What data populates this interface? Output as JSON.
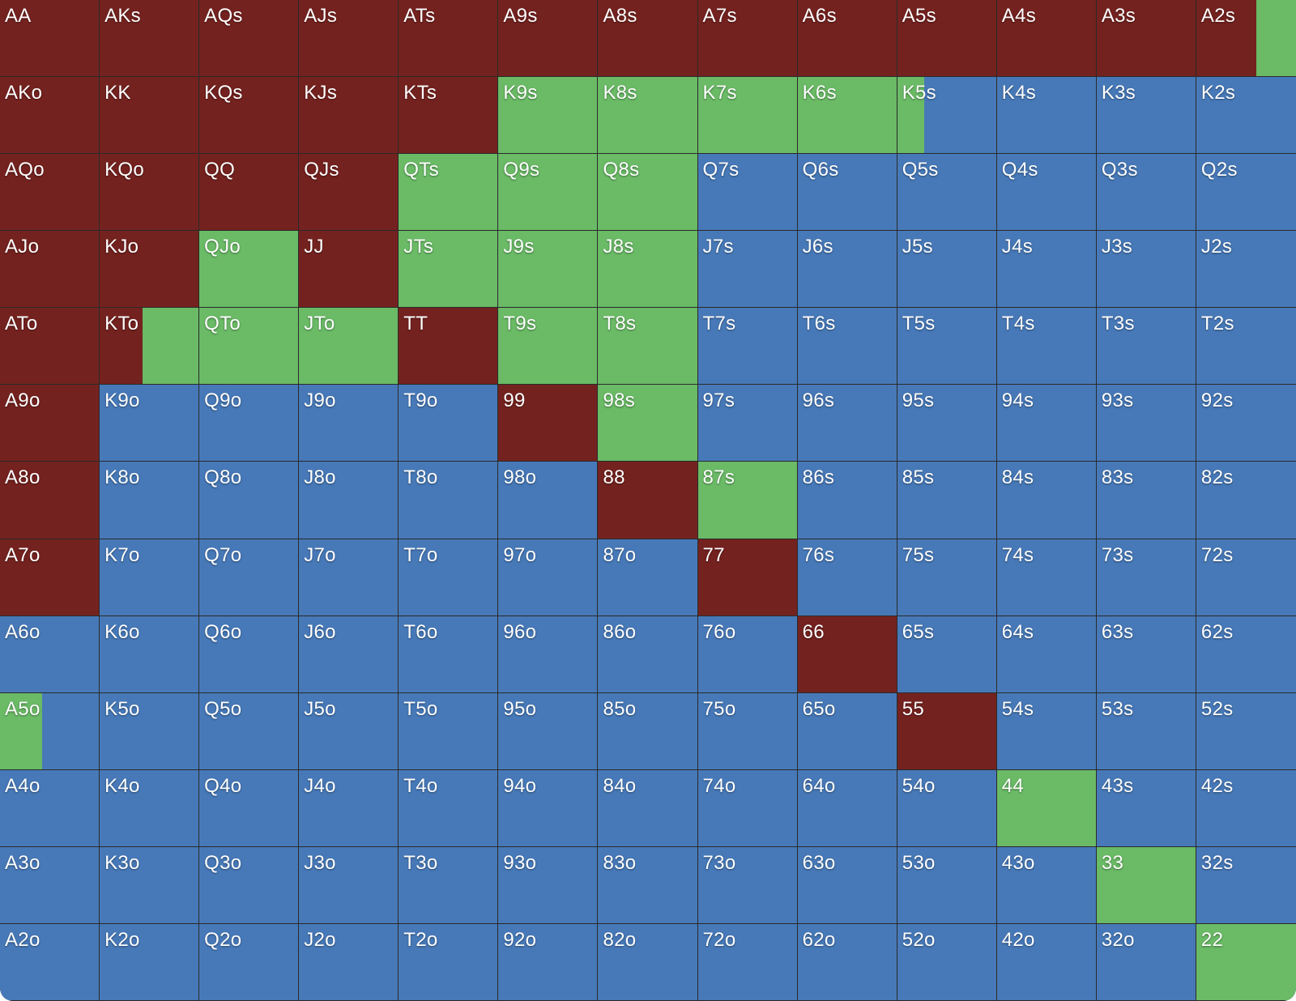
{
  "colors": {
    "raise": "#74221f",
    "call": "#6aba66",
    "fold": "#4779b8"
  },
  "ranks": [
    "A",
    "K",
    "Q",
    "J",
    "T",
    "9",
    "8",
    "7",
    "6",
    "5",
    "4",
    "3",
    "2"
  ],
  "hands": [
    [
      "AA",
      "AKs",
      "AQs",
      "AJs",
      "ATs",
      "A9s",
      "A8s",
      "A7s",
      "A6s",
      "A5s",
      "A4s",
      "A3s",
      "A2s"
    ],
    [
      "AKo",
      "KK",
      "KQs",
      "KJs",
      "KTs",
      "K9s",
      "K8s",
      "K7s",
      "K6s",
      "K5s",
      "K4s",
      "K3s",
      "K2s"
    ],
    [
      "AQo",
      "KQo",
      "QQ",
      "QJs",
      "QTs",
      "Q9s",
      "Q8s",
      "Q7s",
      "Q6s",
      "Q5s",
      "Q4s",
      "Q3s",
      "Q2s"
    ],
    [
      "AJo",
      "KJo",
      "QJo",
      "JJ",
      "JTs",
      "J9s",
      "J8s",
      "J7s",
      "J6s",
      "J5s",
      "J4s",
      "J3s",
      "J2s"
    ],
    [
      "ATo",
      "KTo",
      "QTo",
      "JTo",
      "TT",
      "T9s",
      "T8s",
      "T7s",
      "T6s",
      "T5s",
      "T4s",
      "T3s",
      "T2s"
    ],
    [
      "A9o",
      "K9o",
      "Q9o",
      "J9o",
      "T9o",
      "99",
      "98s",
      "97s",
      "96s",
      "95s",
      "94s",
      "93s",
      "92s"
    ],
    [
      "A8o",
      "K8o",
      "Q8o",
      "J8o",
      "T8o",
      "98o",
      "88",
      "87s",
      "86s",
      "85s",
      "84s",
      "83s",
      "82s"
    ],
    [
      "A7o",
      "K7o",
      "Q7o",
      "J7o",
      "T7o",
      "97o",
      "87o",
      "77",
      "76s",
      "75s",
      "74s",
      "73s",
      "72s"
    ],
    [
      "A6o",
      "K6o",
      "Q6o",
      "J6o",
      "T6o",
      "96o",
      "86o",
      "76o",
      "66",
      "65s",
      "64s",
      "63s",
      "62s"
    ],
    [
      "A5o",
      "K5o",
      "Q5o",
      "J5o",
      "T5o",
      "95o",
      "85o",
      "75o",
      "65o",
      "55",
      "54s",
      "53s",
      "52s"
    ],
    [
      "A4o",
      "K4o",
      "Q4o",
      "J4o",
      "T4o",
      "94o",
      "84o",
      "74o",
      "64o",
      "54o",
      "44",
      "43s",
      "42s"
    ],
    [
      "A3o",
      "K3o",
      "Q3o",
      "J3o",
      "T3o",
      "93o",
      "83o",
      "73o",
      "63o",
      "53o",
      "43o",
      "33",
      "32s"
    ],
    [
      "A2o",
      "K2o",
      "Q2o",
      "J2o",
      "T2o",
      "92o",
      "82o",
      "72o",
      "62o",
      "52o",
      "42o",
      "32o",
      "22"
    ]
  ],
  "frequencies": [
    [
      [
        1,
        0
      ],
      [
        1,
        0
      ],
      [
        1,
        0
      ],
      [
        1,
        0
      ],
      [
        1,
        0
      ],
      [
        1,
        0
      ],
      [
        1,
        0
      ],
      [
        1,
        0
      ],
      [
        1,
        0
      ],
      [
        1,
        0
      ],
      [
        1,
        0
      ],
      [
        1,
        0
      ],
      [
        0.6,
        0.4
      ]
    ],
    [
      [
        1,
        0
      ],
      [
        1,
        0
      ],
      [
        1,
        0
      ],
      [
        1,
        0
      ],
      [
        1,
        0
      ],
      [
        0,
        1
      ],
      [
        0,
        1
      ],
      [
        0,
        1
      ],
      [
        0,
        1
      ],
      [
        0,
        0.27
      ],
      [
        0,
        0
      ],
      [
        0,
        0
      ],
      [
        0,
        0
      ]
    ],
    [
      [
        1,
        0
      ],
      [
        1,
        0
      ],
      [
        1,
        0
      ],
      [
        1,
        0
      ],
      [
        0,
        1
      ],
      [
        0,
        1
      ],
      [
        0,
        1
      ],
      [
        0,
        0
      ],
      [
        0,
        0
      ],
      [
        0,
        0
      ],
      [
        0,
        0
      ],
      [
        0,
        0
      ],
      [
        0,
        0
      ]
    ],
    [
      [
        1,
        0
      ],
      [
        1,
        0
      ],
      [
        0,
        1
      ],
      [
        1,
        0
      ],
      [
        0,
        1
      ],
      [
        0,
        1
      ],
      [
        0,
        1
      ],
      [
        0,
        0
      ],
      [
        0,
        0
      ],
      [
        0,
        0
      ],
      [
        0,
        0
      ],
      [
        0,
        0
      ],
      [
        0,
        0
      ]
    ],
    [
      [
        1,
        0
      ],
      [
        0.43,
        0.57
      ],
      [
        0,
        1
      ],
      [
        0,
        1
      ],
      [
        1,
        0
      ],
      [
        0,
        1
      ],
      [
        0,
        1
      ],
      [
        0,
        0
      ],
      [
        0,
        0
      ],
      [
        0,
        0
      ],
      [
        0,
        0
      ],
      [
        0,
        0
      ],
      [
        0,
        0
      ]
    ],
    [
      [
        1,
        0
      ],
      [
        0,
        0
      ],
      [
        0,
        0
      ],
      [
        0,
        0
      ],
      [
        0,
        0
      ],
      [
        1,
        0
      ],
      [
        0,
        1
      ],
      [
        0,
        0
      ],
      [
        0,
        0
      ],
      [
        0,
        0
      ],
      [
        0,
        0
      ],
      [
        0,
        0
      ],
      [
        0,
        0
      ]
    ],
    [
      [
        1,
        0
      ],
      [
        0,
        0
      ],
      [
        0,
        0
      ],
      [
        0,
        0
      ],
      [
        0,
        0
      ],
      [
        0,
        0
      ],
      [
        1,
        0
      ],
      [
        0,
        1
      ],
      [
        0,
        0
      ],
      [
        0,
        0
      ],
      [
        0,
        0
      ],
      [
        0,
        0
      ],
      [
        0,
        0
      ]
    ],
    [
      [
        1,
        0
      ],
      [
        0,
        0
      ],
      [
        0,
        0
      ],
      [
        0,
        0
      ],
      [
        0,
        0
      ],
      [
        0,
        0
      ],
      [
        0,
        0
      ],
      [
        1,
        0
      ],
      [
        0,
        0
      ],
      [
        0,
        0
      ],
      [
        0,
        0
      ],
      [
        0,
        0
      ],
      [
        0,
        0
      ]
    ],
    [
      [
        0,
        0
      ],
      [
        0,
        0
      ],
      [
        0,
        0
      ],
      [
        0,
        0
      ],
      [
        0,
        0
      ],
      [
        0,
        0
      ],
      [
        0,
        0
      ],
      [
        0,
        0
      ],
      [
        1,
        0
      ],
      [
        0,
        0
      ],
      [
        0,
        0
      ],
      [
        0,
        0
      ],
      [
        0,
        0
      ]
    ],
    [
      [
        0,
        0.43
      ],
      [
        0,
        0
      ],
      [
        0,
        0
      ],
      [
        0,
        0
      ],
      [
        0,
        0
      ],
      [
        0,
        0
      ],
      [
        0,
        0
      ],
      [
        0,
        0
      ],
      [
        0,
        0
      ],
      [
        1,
        0
      ],
      [
        0,
        0
      ],
      [
        0,
        0
      ],
      [
        0,
        0
      ]
    ],
    [
      [
        0,
        0
      ],
      [
        0,
        0
      ],
      [
        0,
        0
      ],
      [
        0,
        0
      ],
      [
        0,
        0
      ],
      [
        0,
        0
      ],
      [
        0,
        0
      ],
      [
        0,
        0
      ],
      [
        0,
        0
      ],
      [
        0,
        0
      ],
      [
        0,
        1
      ],
      [
        0,
        0
      ],
      [
        0,
        0
      ]
    ],
    [
      [
        0,
        0
      ],
      [
        0,
        0
      ],
      [
        0,
        0
      ],
      [
        0,
        0
      ],
      [
        0,
        0
      ],
      [
        0,
        0
      ],
      [
        0,
        0
      ],
      [
        0,
        0
      ],
      [
        0,
        0
      ],
      [
        0,
        0
      ],
      [
        0,
        0
      ],
      [
        0,
        1
      ],
      [
        0,
        0
      ]
    ],
    [
      [
        0,
        0
      ],
      [
        0,
        0
      ],
      [
        0,
        0
      ],
      [
        0,
        0
      ],
      [
        0,
        0
      ],
      [
        0,
        0
      ],
      [
        0,
        0
      ],
      [
        0,
        0
      ],
      [
        0,
        0
      ],
      [
        0,
        0
      ],
      [
        0,
        0
      ],
      [
        0,
        0
      ],
      [
        0,
        1
      ]
    ]
  ]
}
